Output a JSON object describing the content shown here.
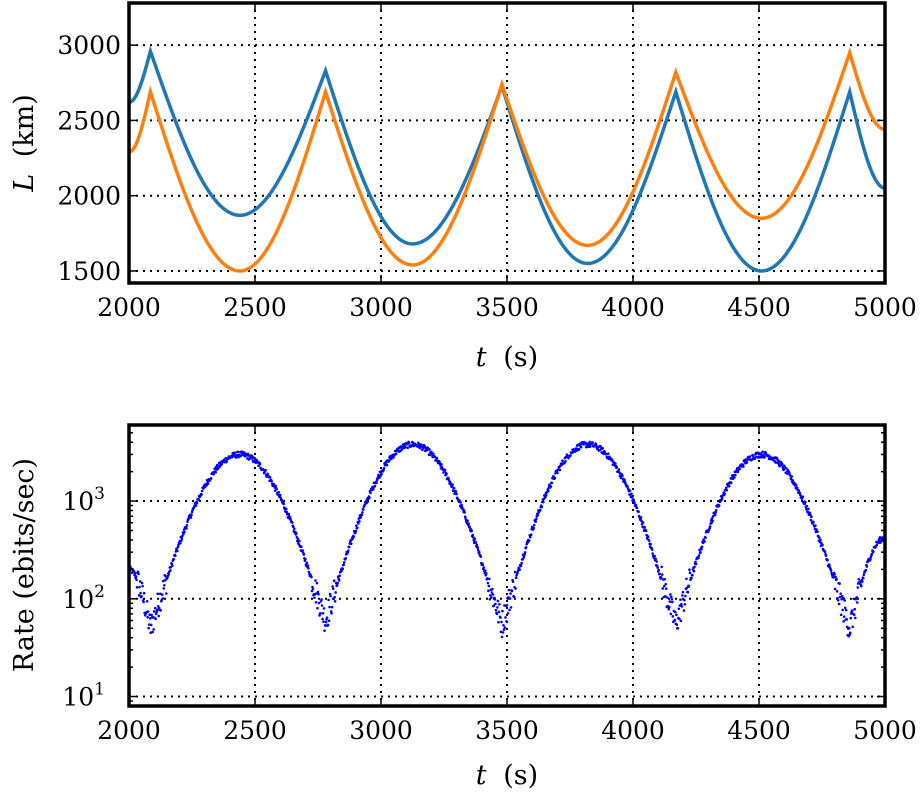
{
  "chart_data": [
    {
      "type": "line",
      "xlabel_var": "t",
      "xlabel_unit": "(s)",
      "ylabel_var": "L",
      "ylabel_unit": "(km)",
      "xlim": [
        2000,
        5000
      ],
      "ylim": [
        1420,
        3280
      ],
      "x_ticks": [
        "2000",
        "2500",
        "3000",
        "3500",
        "4000",
        "4500",
        "5000"
      ],
      "y_ticks": [
        "1500",
        "2000",
        "2500",
        "3000"
      ],
      "grid": true,
      "series": [
        {
          "color": "#1f77b4",
          "x": [
            2000,
            2085,
            2440,
            2780,
            3125,
            3480,
            3820,
            4170,
            4510,
            4860,
            5000
          ],
          "y": [
            2620,
            2960,
            1870,
            2830,
            1680,
            2730,
            1550,
            2690,
            1500,
            2690,
            2050
          ]
        },
        {
          "color": "#ff7f0e",
          "x": [
            2000,
            2085,
            2440,
            2780,
            3125,
            3480,
            3820,
            4170,
            4510,
            4860,
            5000
          ],
          "y": [
            2290,
            2690,
            1500,
            2690,
            1540,
            2740,
            1670,
            2820,
            1850,
            2950,
            2440
          ]
        }
      ]
    },
    {
      "type": "scatter",
      "xlabel_var": "t",
      "xlabel_unit": "(s)",
      "ylabel": "Rate (ebits/sec)",
      "yscale": "log",
      "xlim": [
        2000,
        5000
      ],
      "ylim": [
        8,
        6000
      ],
      "x_ticks": [
        "2000",
        "2500",
        "3000",
        "3500",
        "4000",
        "4500",
        "5000"
      ],
      "y_ticks": [
        {
          "value": 10,
          "base": "10",
          "exp": "1"
        },
        {
          "value": 100,
          "base": "10",
          "exp": "2"
        },
        {
          "value": 1000,
          "base": "10",
          "exp": "3"
        }
      ],
      "grid": true,
      "color": "#0000ff",
      "series": [
        {
          "x": [
            2000,
            2085,
            2440,
            2780,
            3125,
            3480,
            3820,
            4170,
            4510,
            4860,
            5000
          ],
          "y": [
            200,
            50,
            3000,
            60,
            3800,
            55,
            3800,
            55,
            3000,
            50,
            420
          ]
        }
      ]
    }
  ]
}
